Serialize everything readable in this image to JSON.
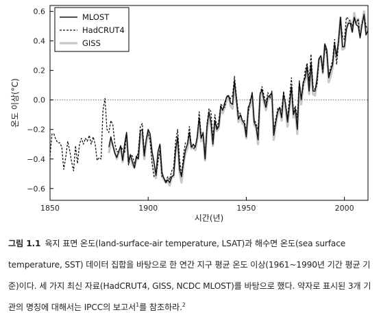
{
  "chart_data": {
    "type": "line",
    "ylabel": "온도 이상(°C)",
    "xlabel": "시간(년)",
    "xlim": [
      1850,
      2012
    ],
    "ylim": [
      -0.68,
      0.64
    ],
    "xticks": [
      1850,
      1900,
      1950,
      2000
    ],
    "yticks": [
      -0.6,
      -0.4,
      -0.2,
      0.0,
      0.2,
      0.4,
      0.6
    ],
    "ytick_labels": [
      "−0.6",
      "−0.4",
      "−0.2",
      "0.0",
      "0.2",
      "0.4",
      "0.6"
    ],
    "xtick_labels": [
      "1850",
      "1900",
      "1950",
      "2000"
    ],
    "reference_line": 0.0,
    "legend_position": "top-left",
    "series": [
      {
        "name": "MLOST",
        "style": "solid",
        "color": "#111111",
        "x": [
          1880,
          1881,
          1882,
          1883,
          1884,
          1885,
          1886,
          1887,
          1888,
          1889,
          1890,
          1891,
          1892,
          1893,
          1894,
          1895,
          1896,
          1897,
          1898,
          1899,
          1900,
          1901,
          1902,
          1903,
          1904,
          1905,
          1906,
          1907,
          1908,
          1909,
          1910,
          1911,
          1912,
          1913,
          1914,
          1915,
          1916,
          1917,
          1918,
          1919,
          1920,
          1921,
          1922,
          1923,
          1924,
          1925,
          1926,
          1927,
          1928,
          1929,
          1930,
          1931,
          1932,
          1933,
          1934,
          1935,
          1936,
          1937,
          1938,
          1939,
          1940,
          1941,
          1942,
          1943,
          1944,
          1945,
          1946,
          1947,
          1948,
          1949,
          1950,
          1951,
          1952,
          1953,
          1954,
          1955,
          1956,
          1957,
          1958,
          1959,
          1960,
          1961,
          1962,
          1963,
          1964,
          1965,
          1966,
          1967,
          1968,
          1969,
          1970,
          1971,
          1972,
          1973,
          1974,
          1975,
          1976,
          1977,
          1978,
          1979,
          1980,
          1981,
          1982,
          1983,
          1984,
          1985,
          1986,
          1987,
          1988,
          1989,
          1990,
          1991,
          1992,
          1993,
          1994,
          1995,
          1996,
          1997,
          1998,
          1999,
          2000,
          2001,
          2002,
          2003,
          2004,
          2005,
          2006,
          2007,
          2008,
          2009,
          2010,
          2011,
          2012
        ],
        "values": [
          -0.32,
          -0.25,
          -0.31,
          -0.36,
          -0.39,
          -0.35,
          -0.31,
          -0.41,
          -0.3,
          -0.22,
          -0.42,
          -0.37,
          -0.42,
          -0.46,
          -0.38,
          -0.4,
          -0.21,
          -0.2,
          -0.38,
          -0.27,
          -0.2,
          -0.23,
          -0.35,
          -0.42,
          -0.51,
          -0.35,
          -0.3,
          -0.49,
          -0.53,
          -0.56,
          -0.54,
          -0.56,
          -0.52,
          -0.51,
          -0.34,
          -0.25,
          -0.47,
          -0.52,
          -0.42,
          -0.34,
          -0.3,
          -0.22,
          -0.32,
          -0.3,
          -0.32,
          -0.25,
          -0.12,
          -0.26,
          -0.22,
          -0.4,
          -0.18,
          -0.08,
          -0.15,
          -0.3,
          -0.14,
          -0.2,
          -0.18,
          -0.04,
          -0.07,
          -0.02,
          0.02,
          0.03,
          -0.02,
          -0.03,
          0.13,
          0.0,
          -0.13,
          -0.1,
          -0.14,
          -0.16,
          -0.25,
          -0.05,
          -0.02,
          0.05,
          -0.15,
          -0.18,
          -0.27,
          0.04,
          0.07,
          0.0,
          -0.05,
          0.02,
          0.03,
          0.05,
          -0.24,
          -0.15,
          -0.08,
          -0.05,
          -0.12,
          0.04,
          -0.03,
          -0.15,
          -0.04,
          0.09,
          -0.1,
          -0.06,
          -0.2,
          0.12,
          0.0,
          0.12,
          0.15,
          0.23,
          0.06,
          0.25,
          0.06,
          0.06,
          0.14,
          0.28,
          0.3,
          0.2,
          0.38,
          0.34,
          0.15,
          0.2,
          0.24,
          0.38,
          0.3,
          0.4,
          0.56,
          0.36,
          0.36,
          0.48,
          0.52,
          0.52,
          0.46,
          0.56,
          0.51,
          0.5,
          0.42,
          0.51,
          0.58,
          0.44,
          0.47
        ]
      },
      {
        "name": "HadCRUT4",
        "style": "dashed",
        "color": "#111111",
        "x": [
          1850,
          1851,
          1852,
          1853,
          1854,
          1855,
          1856,
          1857,
          1858,
          1859,
          1860,
          1861,
          1862,
          1863,
          1864,
          1865,
          1866,
          1867,
          1868,
          1869,
          1870,
          1871,
          1872,
          1873,
          1874,
          1875,
          1876,
          1877,
          1878,
          1879,
          1880,
          1881,
          1882,
          1883,
          1884,
          1885,
          1886,
          1887,
          1888,
          1889,
          1890,
          1891,
          1892,
          1893,
          1894,
          1895,
          1896,
          1897,
          1898,
          1899,
          1900,
          1901,
          1902,
          1903,
          1904,
          1905,
          1906,
          1907,
          1908,
          1909,
          1910,
          1911,
          1912,
          1913,
          1914,
          1915,
          1916,
          1917,
          1918,
          1919,
          1920,
          1921,
          1922,
          1923,
          1924,
          1925,
          1926,
          1927,
          1928,
          1929,
          1930,
          1931,
          1932,
          1933,
          1934,
          1935,
          1936,
          1937,
          1938,
          1939,
          1940,
          1941,
          1942,
          1943,
          1944,
          1945,
          1946,
          1947,
          1948,
          1949,
          1950,
          1951,
          1952,
          1953,
          1954,
          1955,
          1956,
          1957,
          1958,
          1959,
          1960,
          1961,
          1962,
          1963,
          1964,
          1965,
          1966,
          1967,
          1968,
          1969,
          1970,
          1971,
          1972,
          1973,
          1974,
          1975,
          1976,
          1977,
          1978,
          1979,
          1980,
          1981,
          1982,
          1983,
          1984,
          1985,
          1986,
          1987,
          1988,
          1989,
          1990,
          1991,
          1992,
          1993,
          1994,
          1995,
          1996,
          1997,
          1998,
          1999,
          2000,
          2001,
          2002,
          2003,
          2004,
          2005,
          2006,
          2007,
          2008,
          2009,
          2010,
          2011,
          2012
        ],
        "values": [
          -0.38,
          -0.23,
          -0.23,
          -0.27,
          -0.29,
          -0.29,
          -0.32,
          -0.47,
          -0.39,
          -0.28,
          -0.34,
          -0.42,
          -0.48,
          -0.31,
          -0.43,
          -0.3,
          -0.26,
          -0.3,
          -0.26,
          -0.28,
          -0.24,
          -0.3,
          -0.25,
          -0.3,
          -0.41,
          -0.39,
          -0.4,
          -0.07,
          0.01,
          -0.2,
          -0.22,
          -0.14,
          -0.17,
          -0.29,
          -0.35,
          -0.35,
          -0.31,
          -0.34,
          -0.36,
          -0.23,
          -0.44,
          -0.37,
          -0.38,
          -0.43,
          -0.4,
          -0.35,
          -0.18,
          -0.16,
          -0.35,
          -0.27,
          -0.22,
          -0.28,
          -0.43,
          -0.52,
          -0.51,
          -0.42,
          -0.34,
          -0.52,
          -0.53,
          -0.55,
          -0.52,
          -0.54,
          -0.48,
          -0.46,
          -0.28,
          -0.2,
          -0.4,
          -0.51,
          -0.37,
          -0.29,
          -0.3,
          -0.18,
          -0.31,
          -0.33,
          -0.32,
          -0.26,
          -0.08,
          -0.24,
          -0.24,
          -0.38,
          -0.16,
          -0.06,
          -0.08,
          -0.27,
          -0.1,
          -0.19,
          -0.14,
          -0.03,
          -0.04,
          -0.05,
          0.03,
          0.02,
          0.01,
          0.03,
          0.16,
          0.02,
          -0.09,
          -0.09,
          -0.14,
          -0.14,
          -0.22,
          -0.09,
          0.0,
          0.04,
          -0.13,
          -0.16,
          -0.2,
          0.04,
          0.09,
          0.03,
          -0.02,
          0.05,
          0.01,
          0.06,
          -0.21,
          -0.13,
          -0.06,
          -0.05,
          -0.07,
          0.06,
          -0.02,
          -0.12,
          0.01,
          0.15,
          -0.08,
          -0.04,
          -0.12,
          0.13,
          0.01,
          0.09,
          0.2,
          0.25,
          0.13,
          0.31,
          0.09,
          0.07,
          0.1,
          0.27,
          0.3,
          0.18,
          0.36,
          0.31,
          0.17,
          0.22,
          0.27,
          0.41,
          0.24,
          0.39,
          0.54,
          0.43,
          0.41,
          0.56,
          0.55,
          0.53,
          0.5,
          0.56,
          0.52,
          0.55,
          0.42,
          0.52,
          0.57,
          0.5,
          0.48
        ]
      },
      {
        "name": "GISS",
        "style": "solid",
        "color": "#c8c8c8",
        "x": [
          1880,
          1881,
          1882,
          1883,
          1884,
          1885,
          1886,
          1887,
          1888,
          1889,
          1890,
          1891,
          1892,
          1893,
          1894,
          1895,
          1896,
          1897,
          1898,
          1899,
          1900,
          1901,
          1902,
          1903,
          1904,
          1905,
          1906,
          1907,
          1908,
          1909,
          1910,
          1911,
          1912,
          1913,
          1914,
          1915,
          1916,
          1917,
          1918,
          1919,
          1920,
          1921,
          1922,
          1923,
          1924,
          1925,
          1926,
          1927,
          1928,
          1929,
          1930,
          1931,
          1932,
          1933,
          1934,
          1935,
          1936,
          1937,
          1938,
          1939,
          1940,
          1941,
          1942,
          1943,
          1944,
          1945,
          1946,
          1947,
          1948,
          1949,
          1950,
          1951,
          1952,
          1953,
          1954,
          1955,
          1956,
          1957,
          1958,
          1959,
          1960,
          1961,
          1962,
          1963,
          1964,
          1965,
          1966,
          1967,
          1968,
          1969,
          1970,
          1971,
          1972,
          1973,
          1974,
          1975,
          1976,
          1977,
          1978,
          1979,
          1980,
          1981,
          1982,
          1983,
          1984,
          1985,
          1986,
          1987,
          1988,
          1989,
          1990,
          1991,
          1992,
          1993,
          1994,
          1995,
          1996,
          1997,
          1998,
          1999,
          2000,
          2001,
          2002,
          2003,
          2004,
          2005,
          2006,
          2007,
          2008,
          2009,
          2010,
          2011,
          2012
        ],
        "values": [
          -0.36,
          -0.28,
          -0.3,
          -0.35,
          -0.4,
          -0.36,
          -0.33,
          -0.42,
          -0.33,
          -0.24,
          -0.43,
          -0.38,
          -0.44,
          -0.46,
          -0.41,
          -0.39,
          -0.24,
          -0.23,
          -0.4,
          -0.3,
          -0.23,
          -0.26,
          -0.37,
          -0.45,
          -0.53,
          -0.38,
          -0.31,
          -0.51,
          -0.54,
          -0.56,
          -0.55,
          -0.58,
          -0.52,
          -0.52,
          -0.35,
          -0.28,
          -0.49,
          -0.56,
          -0.44,
          -0.36,
          -0.33,
          -0.24,
          -0.33,
          -0.31,
          -0.34,
          -0.27,
          -0.15,
          -0.28,
          -0.25,
          -0.41,
          -0.21,
          -0.11,
          -0.18,
          -0.31,
          -0.15,
          -0.21,
          -0.19,
          -0.06,
          -0.09,
          -0.05,
          0.0,
          0.02,
          -0.04,
          -0.06,
          0.1,
          -0.02,
          -0.15,
          -0.11,
          -0.16,
          -0.17,
          -0.26,
          -0.07,
          -0.04,
          0.03,
          -0.17,
          -0.19,
          -0.3,
          0.02,
          0.05,
          -0.02,
          -0.07,
          0.0,
          0.01,
          0.03,
          -0.27,
          -0.17,
          -0.1,
          -0.06,
          -0.14,
          0.02,
          -0.06,
          -0.18,
          -0.06,
          0.07,
          -0.12,
          -0.08,
          -0.23,
          0.09,
          -0.03,
          0.1,
          0.13,
          0.21,
          0.04,
          0.24,
          0.04,
          0.03,
          0.12,
          0.27,
          0.29,
          0.18,
          0.37,
          0.33,
          0.12,
          0.16,
          0.22,
          0.37,
          0.28,
          0.39,
          0.56,
          0.34,
          0.35,
          0.48,
          0.53,
          0.54,
          0.46,
          0.59,
          0.52,
          0.55,
          0.44,
          0.53,
          0.6,
          0.46,
          0.49
        ]
      }
    ]
  },
  "caption": {
    "label": "그림 1.1",
    "body": "육지 표면 온도(land-surface-air temperature, LSAT)과 해수면 온도(sea surface temperature, SST) 데이터 집합을 바탕으로 한 연간 지구 평균 온도 이상(1961~1990년 기간 평균 기준)이다. 세 가지 최신 자료(HadCRUT4, GISS, NCDC MLOST)를 바탕으로 했다. 약자로 표시된 3개 기관의 명칭에 대해서는 IPCC의 보고서",
    "sup1": "1",
    "mid": "를 참조하라.",
    "sup2": "2"
  }
}
